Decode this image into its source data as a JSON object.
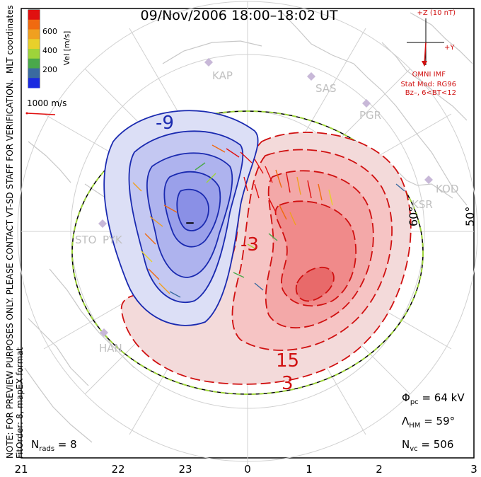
{
  "chart_data": {
    "type": "polar-convection-map",
    "title": "09/Nov/2006 18:00–18:02 UT",
    "coordinate_label": "MLT coordinates",
    "velocity_legend": {
      "label": "Vel [m/s]",
      "ticks": [
        "600",
        "400",
        "200"
      ],
      "colors": [
        "#e01010",
        "#f06a10",
        "#f0a020",
        "#e8d02a",
        "#9ed43a",
        "#4aa84a",
        "#3a6aa0",
        "#1a2ae0"
      ],
      "scale_vector_label": "1000 m/s"
    },
    "bottom_mlt_labels": [
      "21",
      "22",
      "23",
      "0",
      "1",
      "2",
      "3"
    ],
    "latitude_labels": [
      "60°",
      "50°"
    ],
    "station_labels": [
      "KAP",
      "SAS",
      "PGR",
      "KOD",
      "KSR",
      "STO",
      "PYK",
      "HAN"
    ],
    "contour_labels": [
      "-9",
      "–",
      "-3",
      "15",
      "3"
    ],
    "imf_box": {
      "z_label": "+Z (10 nT)",
      "y_label": "+Y",
      "source": "OMNI IMF",
      "model": "Stat Mod: RG96",
      "bin": "Bz–, 6<BT<12"
    },
    "parameters": {
      "phi_pc": "64 kV",
      "lambda_hm": "59°",
      "n_vc": "506",
      "n_rads": "8"
    },
    "side_notes": [
      "NOTE: FOR PREVIEW PURPOSES ONLY. PLEASE CONTACT VT-SD STAFF FOR VERIFICATION.",
      "FitOrder: 8, mapEX format"
    ],
    "colors": {
      "negative_contour": "#1a2ab0",
      "positive_contour": "#d01010",
      "negative_fill": "#9aa0ee",
      "positive_fill": "#f08a8a",
      "boundary": "#9ed43a"
    }
  }
}
